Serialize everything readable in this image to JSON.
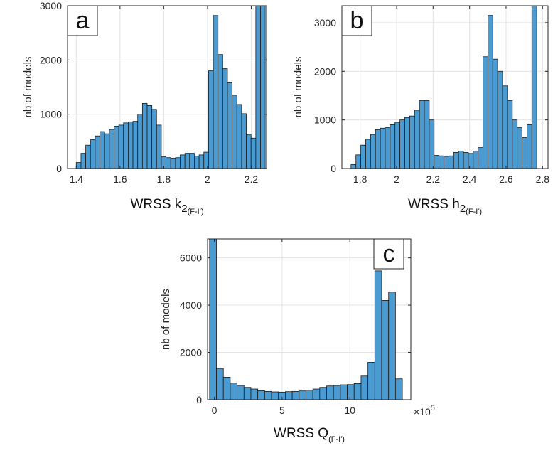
{
  "colors": {
    "bar_fill": "#4b9bd3",
    "bar_edge": "#1a1a1a",
    "grid": "#e3e3e3",
    "axis": "#262626"
  },
  "chart_data": [
    {
      "type": "bar",
      "panel": "a",
      "ylabel": "nb of models",
      "xlabel_main": "WRSS k",
      "xlabel_sub": "2",
      "xlabel_subscript": "(F-I')",
      "xlim": [
        1.36,
        2.27
      ],
      "ylim": [
        0,
        3000
      ],
      "xticks": [
        1.4,
        1.6,
        1.8,
        2,
        2.2
      ],
      "yticks": [
        0,
        1000,
        2000,
        3000
      ],
      "xticklabels": [
        "1.4",
        "1.6",
        "1.8",
        "2",
        "2.2"
      ],
      "yticklabels": [
        "0",
        "1000",
        "2000",
        "3000"
      ],
      "grid": true,
      "bin_start": 1.4,
      "bin_width": 0.0216,
      "values": [
        110,
        280,
        430,
        530,
        600,
        680,
        640,
        720,
        780,
        800,
        840,
        860,
        870,
        1000,
        1200,
        1160,
        1090,
        800,
        220,
        200,
        190,
        200,
        250,
        280,
        280,
        230,
        250,
        300,
        1800,
        2820,
        2100,
        1840,
        1580,
        1350,
        1180,
        1010,
        620,
        560,
        3000,
        3000
      ]
    },
    {
      "type": "bar",
      "panel": "b",
      "ylabel": "nb of models",
      "xlabel_main": "WRSS h",
      "xlabel_sub": "2",
      "xlabel_subscript": "(F-I')",
      "xlim": [
        1.7,
        2.83
      ],
      "ylim": [
        0,
        3350
      ],
      "xticks": [
        1.8,
        2,
        2.2,
        2.4,
        2.6,
        2.8
      ],
      "yticks": [
        0,
        1000,
        2000,
        3000
      ],
      "xticklabels": [
        "1.8",
        "2",
        "2.2",
        "2.4",
        "2.6",
        "2.8"
      ],
      "yticklabels": [
        "0",
        "1000",
        "2000",
        "3000"
      ],
      "grid": true,
      "bin_start": 1.75,
      "bin_width": 0.0268,
      "values": [
        80,
        280,
        480,
        600,
        700,
        800,
        830,
        840,
        900,
        950,
        1000,
        1050,
        1080,
        1200,
        1400,
        1400,
        1000,
        270,
        260,
        250,
        260,
        330,
        360,
        330,
        310,
        360,
        430,
        2300,
        3150,
        2250,
        2000,
        1700,
        1400,
        1000,
        840,
        640,
        900,
        3350
      ]
    },
    {
      "type": "bar",
      "panel": "c",
      "ylabel": "nb of models",
      "xlabel_main": "WRSS Q",
      "xlabel_sub": "",
      "xlabel_subscript": "(F-I')",
      "multiplier_base": "×10",
      "multiplier_exp": "5",
      "xlim": [
        -0.5,
        14.5
      ],
      "ylim": [
        0,
        6800
      ],
      "xticks": [
        0,
        5,
        10
      ],
      "yticks": [
        0,
        2000,
        4000,
        6000
      ],
      "xticklabels": [
        "0",
        "5",
        "10"
      ],
      "yticklabels": [
        "0",
        "2000",
        "4000",
        "6000"
      ],
      "grid": true,
      "bin_start": -0.35,
      "bin_width": 0.508,
      "values": [
        6800,
        1320,
        950,
        700,
        600,
        520,
        450,
        380,
        350,
        330,
        320,
        340,
        350,
        370,
        400,
        450,
        520,
        580,
        600,
        630,
        640,
        680,
        1000,
        1580,
        5450,
        4200,
        4550,
        880
      ]
    }
  ]
}
